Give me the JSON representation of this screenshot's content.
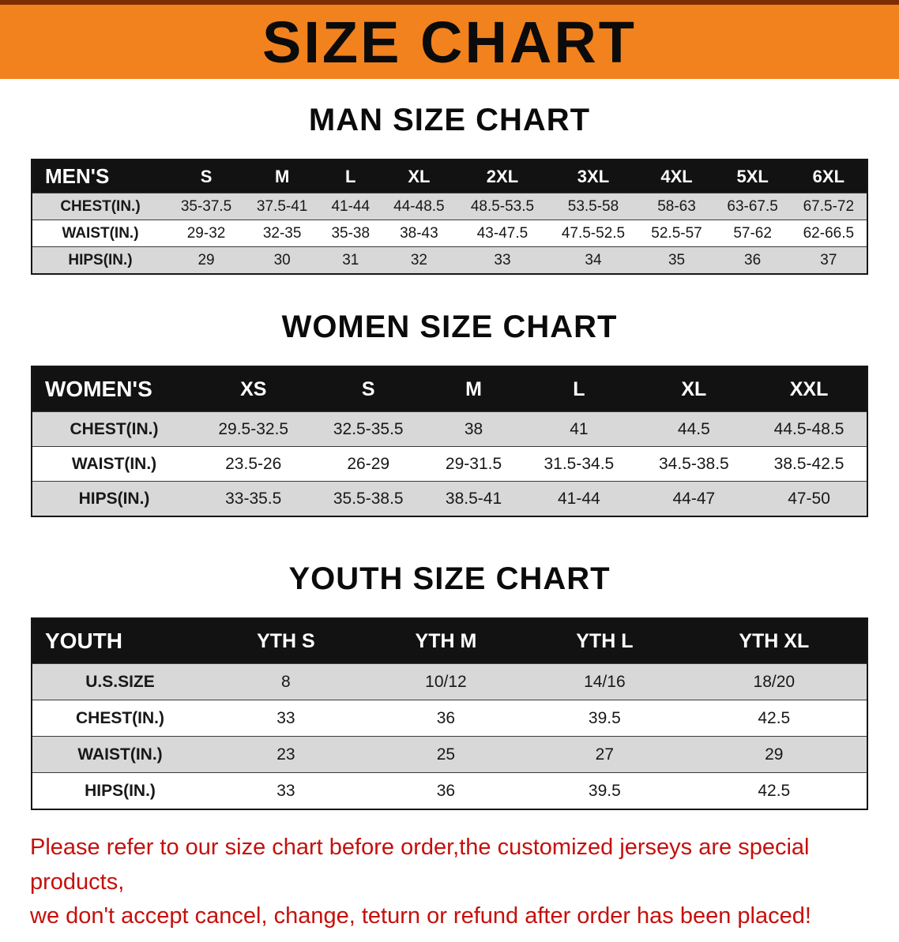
{
  "banner": {
    "title": "SIZE CHART",
    "bg_color": "#f2821d"
  },
  "sections": [
    {
      "heading": "MAN SIZE CHART",
      "table": {
        "header": [
          "MEN'S",
          "S",
          "M",
          "L",
          "XL",
          "2XL",
          "3XL",
          "4XL",
          "5XL",
          "6XL"
        ],
        "rows": [
          [
            "CHEST(IN.)",
            "35-37.5",
            "37.5-41",
            "41-44",
            "44-48.5",
            "48.5-53.5",
            "53.5-58",
            "58-63",
            "63-67.5",
            "67.5-72"
          ],
          [
            "WAIST(IN.)",
            "29-32",
            "32-35",
            "35-38",
            "38-43",
            "43-47.5",
            "47.5-52.5",
            "52.5-57",
            "57-62",
            "62-66.5"
          ],
          [
            "HIPS(IN.)",
            "29",
            "30",
            "31",
            "32",
            "33",
            "34",
            "35",
            "36",
            "37"
          ]
        ]
      }
    },
    {
      "heading": "WOMEN SIZE CHART",
      "table": {
        "header": [
          "WOMEN'S",
          "XS",
          "S",
          "M",
          "L",
          "XL",
          "XXL"
        ],
        "rows": [
          [
            "CHEST(IN.)",
            "29.5-32.5",
            "32.5-35.5",
            "38",
            "41",
            "44.5",
            "44.5-48.5"
          ],
          [
            "WAIST(IN.)",
            "23.5-26",
            "26-29",
            "29-31.5",
            "31.5-34.5",
            "34.5-38.5",
            "38.5-42.5"
          ],
          [
            "HIPS(IN.)",
            "33-35.5",
            "35.5-38.5",
            "38.5-41",
            "41-44",
            "44-47",
            "47-50"
          ]
        ]
      }
    },
    {
      "heading": "YOUTH SIZE CHART",
      "table": {
        "header": [
          "YOUTH",
          "YTH S",
          "YTH M",
          "YTH L",
          "YTH XL"
        ],
        "rows": [
          [
            "U.S.SIZE",
            "8",
            "10/12",
            "14/16",
            "18/20"
          ],
          [
            "CHEST(IN.)",
            "33",
            "36",
            "39.5",
            "42.5"
          ],
          [
            "WAIST(IN.)",
            "23",
            "25",
            "27",
            "29"
          ],
          [
            "HIPS(IN.)",
            "33",
            "36",
            "39.5",
            "42.5"
          ]
        ]
      }
    }
  ],
  "disclaimer": {
    "lines": [
      "Please refer to our size chart before order,the customized jerseys are special products,",
      "we don't accept cancel, change, teturn or refund after order has been placed!"
    ],
    "color": "#c5100c"
  }
}
